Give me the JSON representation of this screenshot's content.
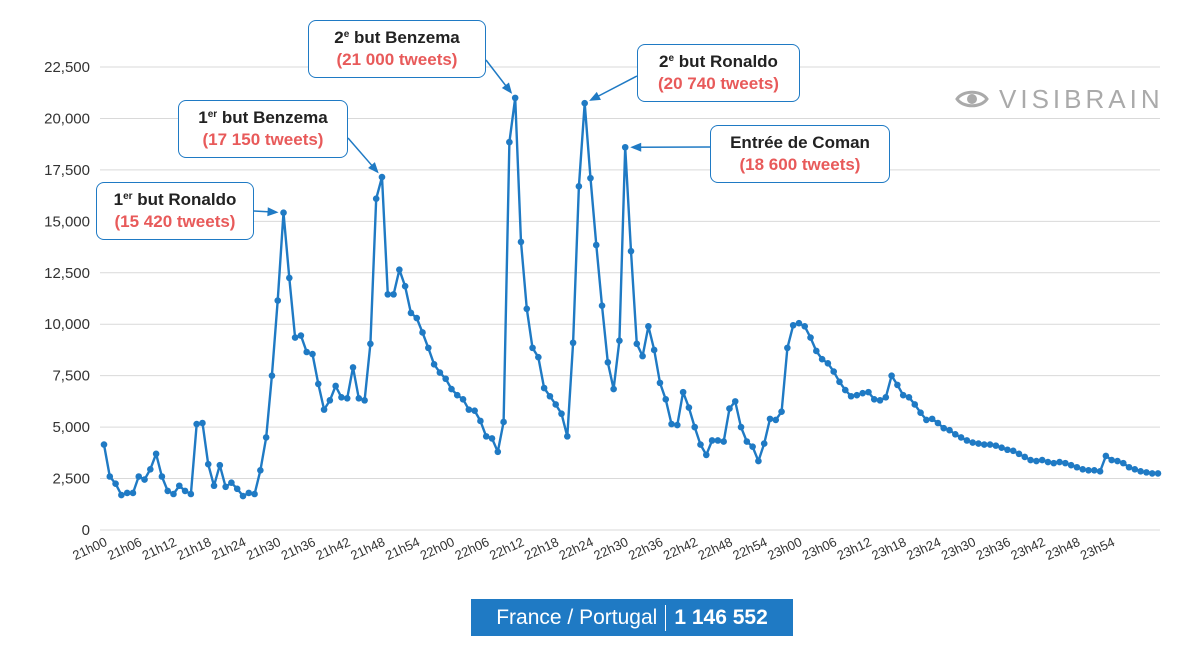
{
  "chart_data": {
    "type": "line",
    "title": "",
    "xlabel": "",
    "ylabel": "",
    "ylim": [
      0,
      22500
    ],
    "y_ticks": [
      0,
      2500,
      5000,
      7500,
      10000,
      12500,
      15000,
      17500,
      20000,
      22500
    ],
    "y_tick_labels": [
      "0",
      "2,500",
      "5,000",
      "7,500",
      "10,000",
      "12,500",
      "15,000",
      "17,500",
      "20,000",
      "22,500"
    ],
    "x_tick_labels": [
      "21h00",
      "21h06",
      "21h12",
      "21h18",
      "21h24",
      "21h30",
      "21h36",
      "21h42",
      "21h48",
      "21h54",
      "22h00",
      "22h06",
      "22h12",
      "22h18",
      "22h24",
      "22h30",
      "22h36",
      "22h42",
      "22h48",
      "22h54",
      "23h00",
      "23h06",
      "23h12",
      "23h18",
      "23h24",
      "23h30",
      "23h36",
      "23h42",
      "23h48",
      "23h54"
    ],
    "minutes_per_tick_label": 6,
    "series": [
      {
        "name": "France / Portugal",
        "values": [
          4150,
          2600,
          2250,
          1700,
          1800,
          1800,
          2600,
          2450,
          2950,
          3700,
          2600,
          1900,
          1750,
          2150,
          1900,
          1750,
          5150,
          5200,
          3200,
          2150,
          3150,
          2100,
          2300,
          2000,
          1650,
          1800,
          1750,
          2900,
          4500,
          7500,
          11150,
          15420,
          12250,
          9350,
          9450,
          8650,
          8550,
          7100,
          5850,
          6300,
          7000,
          6450,
          6400,
          7900,
          6400,
          6300,
          9050,
          16100,
          17150,
          11450,
          11450,
          12650,
          11850,
          10550,
          10300,
          9600,
          8850,
          8050,
          7650,
          7350,
          6850,
          6550,
          6350,
          5850,
          5800,
          5300,
          4550,
          4450,
          3800,
          5250,
          18850,
          21000,
          14000,
          10750,
          8850,
          8400,
          6900,
          6500,
          6100,
          5650,
          4550,
          9100,
          16700,
          20740,
          17100,
          13850,
          10900,
          8150,
          6850,
          9200,
          18600,
          13550,
          9050,
          8450,
          9900,
          8750,
          7150,
          6350,
          5150,
          5100,
          6700,
          5950,
          5000,
          4150,
          3650,
          4350,
          4350,
          4300,
          5900,
          6250,
          5000,
          4300,
          4050,
          3350,
          4200,
          5400,
          5350,
          5750,
          8850,
          9950,
          10050,
          9900,
          9350,
          8700,
          8300,
          8100,
          7700,
          7200,
          6800,
          6500,
          6550,
          6650,
          6700,
          6350,
          6300,
          6450,
          7500,
          7050,
          6550,
          6450,
          6100,
          5700,
          5350,
          5400,
          5200,
          4950,
          4850,
          4650,
          4500,
          4350,
          4250,
          4200,
          4150,
          4150,
          4100,
          4000,
          3900,
          3850,
          3700,
          3550,
          3400,
          3350,
          3400,
          3300,
          3250,
          3300,
          3250,
          3150,
          3050,
          2950,
          2900,
          2900,
          2850,
          3600,
          3400,
          3350,
          3250,
          3050,
          2950,
          2850,
          2800,
          2750,
          2750
        ]
      }
    ],
    "annotations": [
      {
        "title": "1",
        "sup": "er",
        "rest": " but Ronaldo",
        "count": "(15 420 tweets)",
        "point_index": 31,
        "value": 15420
      },
      {
        "title": "1",
        "sup": "er",
        "rest": " but Benzema",
        "count": "(17 150 tweets)",
        "point_index": 48,
        "value": 17150
      },
      {
        "title": "2",
        "sup": "e",
        "rest": " but Benzema",
        "count": "(21 000 tweets)",
        "point_index": 71,
        "value": 21000
      },
      {
        "title": "2",
        "sup": "e",
        "rest": " but Ronaldo",
        "count": "(20 740 tweets)",
        "point_index": 83,
        "value": 20740
      },
      {
        "title": "Entrée de Coman",
        "sup": "",
        "rest": "",
        "count": "(18 600 tweets)",
        "point_index": 90,
        "value": 18600
      }
    ]
  },
  "logo": {
    "text": "VISIBRAIN"
  },
  "footer": {
    "label": "France / Portugal",
    "total": "1 146 552"
  },
  "colors": {
    "series": "#1f7ac4",
    "count_text": "#e85a5a",
    "grid": "#d9d9d9"
  }
}
